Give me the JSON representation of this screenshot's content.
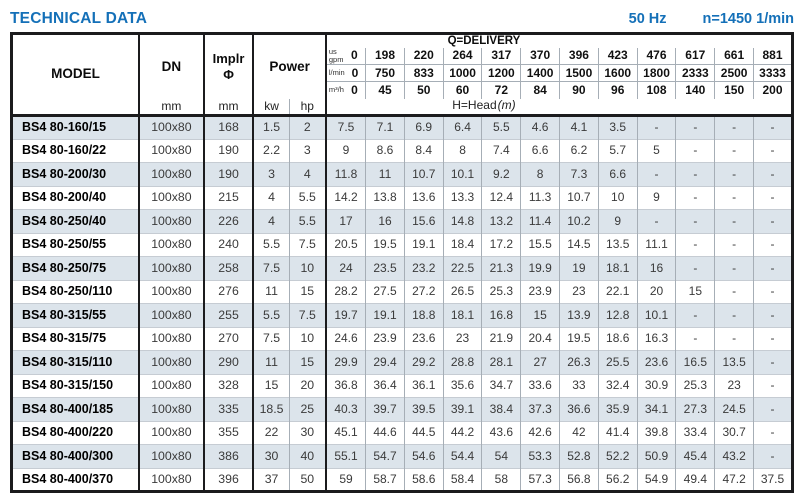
{
  "page": {
    "title": "TECHNICAL DATA",
    "frequency": "50 Hz",
    "speed": "n=1450 1/min"
  },
  "colors": {
    "accent_blue": "#1470b8",
    "row_shade": "#dce4eb",
    "border_dark": "#1b1b1d",
    "border_light": "#a6aeb6"
  },
  "table": {
    "headers": {
      "model": "MODEL",
      "dn": "DN",
      "implr_line1": "Implr",
      "implr_line2": "Φ",
      "power": "Power",
      "dn_unit": "mm",
      "implr_unit": "mm",
      "kw": "kw",
      "hp": "hp",
      "delivery": "Q=DELIVERY",
      "head_label": "H=Head",
      "head_unit": "(m)"
    },
    "flow_rows": [
      {
        "unit_lines": [
          "us",
          "gpm"
        ],
        "values": [
          "0",
          "198",
          "220",
          "264",
          "317",
          "370",
          "396",
          "423",
          "476",
          "617",
          "661",
          "881"
        ]
      },
      {
        "unit_lines": [
          "l/min"
        ],
        "values": [
          "0",
          "750",
          "833",
          "1000",
          "1200",
          "1400",
          "1500",
          "1600",
          "1800",
          "2333",
          "2500",
          "3333"
        ]
      },
      {
        "unit_lines": [
          "m³/h"
        ],
        "values": [
          "0",
          "45",
          "50",
          "60",
          "72",
          "84",
          "90",
          "96",
          "108",
          "140",
          "150",
          "200"
        ]
      }
    ],
    "rows": [
      {
        "model": "BS4 80-160/15",
        "dn": "100x80",
        "implr": "168",
        "kw": "1.5",
        "hp": "2",
        "head": [
          "7.5",
          "7.1",
          "6.9",
          "6.4",
          "5.5",
          "4.6",
          "4.1",
          "3.5",
          "-",
          "-",
          "-",
          "-"
        ]
      },
      {
        "model": "BS4 80-160/22",
        "dn": "100x80",
        "implr": "190",
        "kw": "2.2",
        "hp": "3",
        "head": [
          "9",
          "8.6",
          "8.4",
          "8",
          "7.4",
          "6.6",
          "6.2",
          "5.7",
          "5",
          "-",
          "-",
          "-"
        ]
      },
      {
        "model": "BS4 80-200/30",
        "dn": "100x80",
        "implr": "190",
        "kw": "3",
        "hp": "4",
        "head": [
          "11.8",
          "11",
          "10.7",
          "10.1",
          "9.2",
          "8",
          "7.3",
          "6.6",
          "-",
          "-",
          "-",
          "-"
        ]
      },
      {
        "model": "BS4 80-200/40",
        "dn": "100x80",
        "implr": "215",
        "kw": "4",
        "hp": "5.5",
        "head": [
          "14.2",
          "13.8",
          "13.6",
          "13.3",
          "12.4",
          "11.3",
          "10.7",
          "10",
          "9",
          "-",
          "-",
          "-"
        ]
      },
      {
        "model": "BS4 80-250/40",
        "dn": "100x80",
        "implr": "226",
        "kw": "4",
        "hp": "5.5",
        "head": [
          "17",
          "16",
          "15.6",
          "14.8",
          "13.2",
          "11.4",
          "10.2",
          "9",
          "-",
          "-",
          "-",
          "-"
        ]
      },
      {
        "model": "BS4 80-250/55",
        "dn": "100x80",
        "implr": "240",
        "kw": "5.5",
        "hp": "7.5",
        "head": [
          "20.5",
          "19.5",
          "19.1",
          "18.4",
          "17.2",
          "15.5",
          "14.5",
          "13.5",
          "11.1",
          "-",
          "-",
          "-"
        ]
      },
      {
        "model": "BS4 80-250/75",
        "dn": "100x80",
        "implr": "258",
        "kw": "7.5",
        "hp": "10",
        "head": [
          "24",
          "23.5",
          "23.2",
          "22.5",
          "21.3",
          "19.9",
          "19",
          "18.1",
          "16",
          "-",
          "-",
          "-"
        ]
      },
      {
        "model": "BS4 80-250/110",
        "dn": "100x80",
        "implr": "276",
        "kw": "11",
        "hp": "15",
        "head": [
          "28.2",
          "27.5",
          "27.2",
          "26.5",
          "25.3",
          "23.9",
          "23",
          "22.1",
          "20",
          "15",
          "-",
          "-"
        ]
      },
      {
        "model": "BS4 80-315/55",
        "dn": "100x80",
        "implr": "255",
        "kw": "5.5",
        "hp": "7.5",
        "head": [
          "19.7",
          "19.1",
          "18.8",
          "18.1",
          "16.8",
          "15",
          "13.9",
          "12.8",
          "10.1",
          "-",
          "-",
          "-"
        ]
      },
      {
        "model": "BS4 80-315/75",
        "dn": "100x80",
        "implr": "270",
        "kw": "7.5",
        "hp": "10",
        "head": [
          "24.6",
          "23.9",
          "23.6",
          "23",
          "21.9",
          "20.4",
          "19.5",
          "18.6",
          "16.3",
          "-",
          "-",
          "-"
        ]
      },
      {
        "model": "BS4 80-315/110",
        "dn": "100x80",
        "implr": "290",
        "kw": "11",
        "hp": "15",
        "head": [
          "29.9",
          "29.4",
          "29.2",
          "28.8",
          "28.1",
          "27",
          "26.3",
          "25.5",
          "23.6",
          "16.5",
          "13.5",
          "-"
        ]
      },
      {
        "model": "BS4 80-315/150",
        "dn": "100x80",
        "implr": "328",
        "kw": "15",
        "hp": "20",
        "head": [
          "36.8",
          "36.4",
          "36.1",
          "35.6",
          "34.7",
          "33.6",
          "33",
          "32.4",
          "30.9",
          "25.3",
          "23",
          "-"
        ]
      },
      {
        "model": "BS4 80-400/185",
        "dn": "100x80",
        "implr": "335",
        "kw": "18.5",
        "hp": "25",
        "head": [
          "40.3",
          "39.7",
          "39.5",
          "39.1",
          "38.4",
          "37.3",
          "36.6",
          "35.9",
          "34.1",
          "27.3",
          "24.5",
          "-"
        ]
      },
      {
        "model": "BS4 80-400/220",
        "dn": "100x80",
        "implr": "355",
        "kw": "22",
        "hp": "30",
        "head": [
          "45.1",
          "44.6",
          "44.5",
          "44.2",
          "43.6",
          "42.6",
          "42",
          "41.4",
          "39.8",
          "33.4",
          "30.7",
          "-"
        ]
      },
      {
        "model": "BS4 80-400/300",
        "dn": "100x80",
        "implr": "386",
        "kw": "30",
        "hp": "40",
        "head": [
          "55.1",
          "54.7",
          "54.6",
          "54.4",
          "54",
          "53.3",
          "52.8",
          "52.2",
          "50.9",
          "45.4",
          "43.2",
          "-"
        ]
      },
      {
        "model": "BS4 80-400/370",
        "dn": "100x80",
        "implr": "396",
        "kw": "37",
        "hp": "50",
        "head": [
          "59",
          "58.7",
          "58.6",
          "58.4",
          "58",
          "57.3",
          "56.8",
          "56.2",
          "54.9",
          "49.4",
          "47.2",
          "37.5"
        ]
      }
    ]
  }
}
